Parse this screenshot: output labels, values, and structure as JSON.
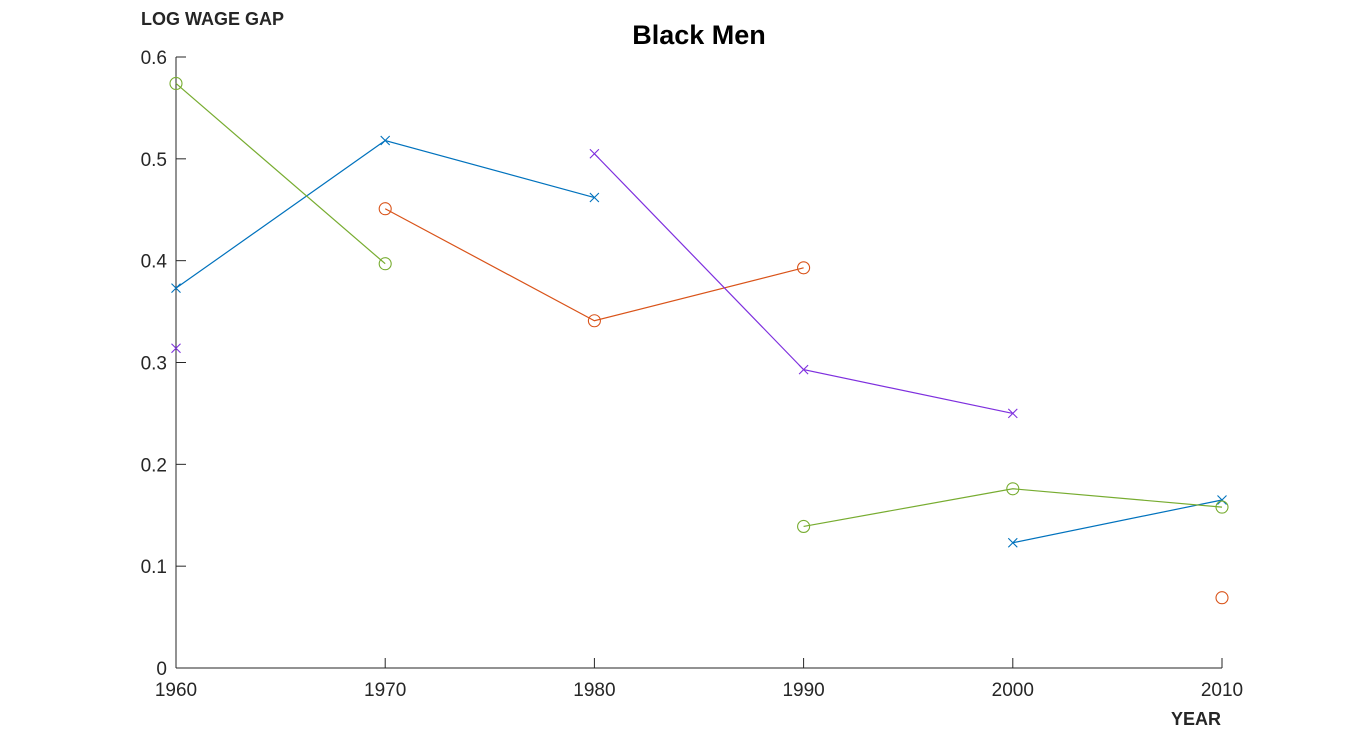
{
  "chart_data": {
    "type": "line",
    "title": "Black Men",
    "xlabel": "YEAR",
    "ylabel": "LOG WAGE GAP",
    "xlim": [
      1960,
      2010
    ],
    "ylim": [
      0,
      0.6
    ],
    "x_ticks": [
      1960,
      1970,
      1980,
      1990,
      2000,
      2010
    ],
    "x_tick_labels": [
      "1960",
      "1970",
      "1980",
      "1990",
      "2000",
      "2010"
    ],
    "y_ticks": [
      0,
      0.1,
      0.2,
      0.3,
      0.4,
      0.5,
      0.6
    ],
    "y_tick_labels": [
      "0",
      "0.1",
      "0.2",
      "0.3",
      "0.4",
      "0.5",
      "0.6"
    ],
    "grid": false,
    "legend": "none",
    "series": [
      {
        "marker": "x",
        "color": "#0072BD",
        "points": [
          [
            1960,
            0.373
          ],
          [
            1970,
            0.518
          ],
          [
            1980,
            0.462
          ]
        ]
      },
      {
        "marker": "x",
        "color": "#0072BD",
        "points": [
          [
            2000,
            0.123
          ],
          [
            2010,
            0.165
          ]
        ]
      },
      {
        "marker": "o",
        "color": "#D95319",
        "points": [
          [
            1970,
            0.451
          ],
          [
            1980,
            0.341
          ],
          [
            1990,
            0.393
          ]
        ]
      },
      {
        "marker": "o",
        "color": "#D95319",
        "points": [
          [
            2010,
            0.069
          ]
        ]
      },
      {
        "marker": "x",
        "color": "#7E2FDE",
        "points": [
          [
            1960,
            0.314
          ]
        ]
      },
      {
        "marker": "x",
        "color": "#7E2FDE",
        "points": [
          [
            1980,
            0.505
          ],
          [
            1990,
            0.293
          ],
          [
            2000,
            0.25
          ]
        ]
      },
      {
        "marker": "o",
        "color": "#77AC30",
        "points": [
          [
            1960,
            0.574
          ],
          [
            1970,
            0.397
          ]
        ]
      },
      {
        "marker": "o",
        "color": "#77AC30",
        "points": [
          [
            1990,
            0.139
          ],
          [
            2000,
            0.176
          ],
          [
            2010,
            0.158
          ]
        ]
      }
    ]
  }
}
